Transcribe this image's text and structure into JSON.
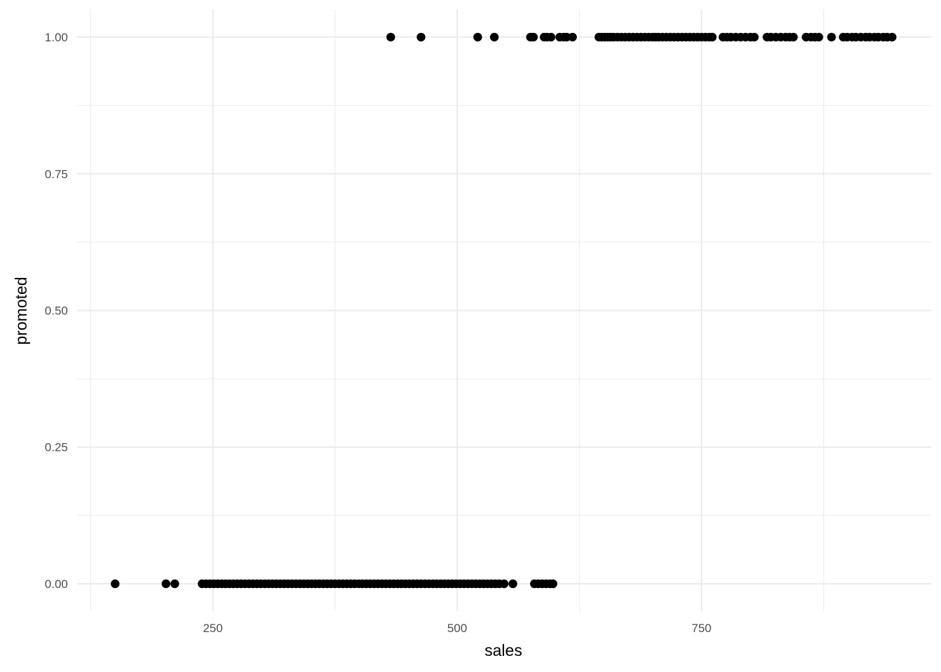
{
  "chart_data": {
    "type": "scatter",
    "title": "",
    "xlabel": "sales",
    "ylabel": "promoted",
    "xlim": [
      111,
      985
    ],
    "ylim": [
      -0.05,
      1.05
    ],
    "xticks": [
      250,
      500,
      750
    ],
    "xtick_labels": [
      "250",
      "500",
      "750"
    ],
    "xminor": [
      125,
      375,
      625,
      875
    ],
    "yticks": [
      0,
      0.25,
      0.5,
      0.75,
      1
    ],
    "ytick_labels": [
      "0.00",
      "0.25",
      "0.50",
      "0.75",
      "1.00"
    ],
    "yminor": [
      0.125,
      0.375,
      0.625,
      0.875
    ],
    "grid": true,
    "point_color": "#000000",
    "grid_color": "#ebebeb",
    "series": [
      {
        "y": 0,
        "x": [
          150,
          202,
          211,
          239,
          243,
          247,
          251,
          255,
          259,
          263,
          267,
          271,
          275,
          279,
          283,
          287,
          291,
          295,
          299,
          303,
          307,
          311,
          315,
          319,
          323,
          327,
          331,
          335,
          339,
          343,
          347,
          351,
          355,
          359,
          363,
          367,
          371,
          375,
          379,
          383,
          387,
          391,
          395,
          399,
          403,
          407,
          411,
          415,
          419,
          423,
          427,
          431,
          435,
          439,
          443,
          447,
          451,
          455,
          459,
          463,
          467,
          471,
          475,
          479,
          483,
          487,
          491,
          495,
          499,
          503,
          507,
          511,
          515,
          519,
          523,
          527,
          531,
          535,
          539,
          543,
          548,
          557,
          579,
          583,
          587,
          591,
          595,
          598
        ]
      },
      {
        "y": 1,
        "x": [
          432,
          463,
          521,
          538,
          575,
          578,
          589,
          592,
          596,
          605,
          609,
          612,
          618,
          645,
          648,
          651,
          654,
          657,
          660,
          664,
          668,
          672,
          676,
          680,
          684,
          688,
          692,
          696,
          700,
          703,
          706,
          710,
          714,
          718,
          722,
          726,
          730,
          734,
          738,
          742,
          746,
          750,
          754,
          758,
          761,
          772,
          776,
          780,
          785,
          790,
          795,
          800,
          804,
          817,
          821,
          826,
          831,
          836,
          840,
          844,
          857,
          862,
          866,
          870,
          883,
          895,
          899,
          904,
          908,
          913,
          918,
          922,
          927,
          931,
          936,
          940,
          945
        ]
      }
    ]
  }
}
